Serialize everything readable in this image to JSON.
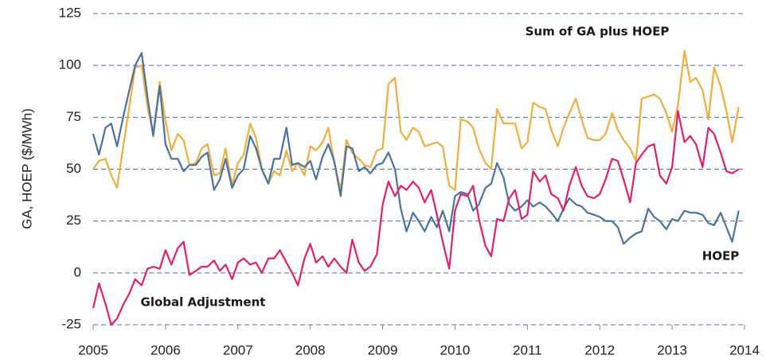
{
  "chart_data": {
    "type": "line",
    "y_label": "GA, HOEP ($/MWh)",
    "x": [
      2005,
      2005.08,
      2005.17,
      2005.25,
      2005.33,
      2005.42,
      2005.5,
      2005.58,
      2005.67,
      2005.75,
      2005.83,
      2005.92,
      2006,
      2006.08,
      2006.17,
      2006.25,
      2006.33,
      2006.42,
      2006.5,
      2006.58,
      2006.67,
      2006.75,
      2006.83,
      2006.92,
      2007,
      2007.08,
      2007.17,
      2007.25,
      2007.33,
      2007.42,
      2007.5,
      2007.58,
      2007.67,
      2007.75,
      2007.83,
      2007.92,
      2008,
      2008.08,
      2008.17,
      2008.25,
      2008.33,
      2008.42,
      2008.5,
      2008.58,
      2008.67,
      2008.75,
      2008.83,
      2008.92,
      2009,
      2009.08,
      2009.17,
      2009.25,
      2009.33,
      2009.42,
      2009.5,
      2009.58,
      2009.67,
      2009.75,
      2009.83,
      2009.92,
      2010,
      2010.08,
      2010.17,
      2010.25,
      2010.33,
      2010.42,
      2010.5,
      2010.58,
      2010.67,
      2010.75,
      2010.83,
      2010.92,
      2011,
      2011.08,
      2011.17,
      2011.25,
      2011.33,
      2011.42,
      2011.5,
      2011.58,
      2011.67,
      2011.75,
      2011.83,
      2011.92,
      2012,
      2012.08,
      2012.17,
      2012.25,
      2012.33,
      2012.42,
      2012.5,
      2012.58,
      2012.67,
      2012.75,
      2012.83,
      2012.92,
      2013,
      2013.08,
      2013.17,
      2013.25,
      2013.33,
      2013.42,
      2013.5,
      2013.58,
      2013.67,
      2013.75,
      2013.83,
      2013.92
    ],
    "series": [
      {
        "name": "Sum of GA plus HOEP",
        "color": "#f0ae3c",
        "values": [
          50,
          54,
          55,
          47,
          41,
          62,
          80,
          99,
          100,
          80,
          67,
          92,
          73,
          59,
          67,
          64,
          52,
          53,
          60,
          62,
          47,
          48,
          60,
          42,
          53,
          57,
          72,
          65,
          50,
          43,
          49,
          47,
          59,
          49,
          53,
          47,
          61,
          59,
          63,
          70,
          53,
          40,
          64,
          58,
          55,
          52,
          51,
          59,
          60,
          91,
          94,
          68,
          64,
          70,
          68,
          61,
          62,
          63,
          61,
          42,
          40,
          74,
          73,
          70,
          60,
          53,
          50,
          79,
          72,
          72,
          72,
          60,
          63,
          82,
          80,
          79,
          69,
          61,
          70,
          77,
          84,
          74,
          65,
          64,
          64,
          67,
          77,
          69,
          64,
          60,
          54,
          84,
          85,
          86,
          84,
          77,
          68,
          81,
          107,
          92,
          94,
          88,
          74,
          99,
          90,
          78,
          63,
          80
        ]
      },
      {
        "name": "HOEP",
        "color": "#4a72a0",
        "values": [
          67,
          57,
          70,
          72,
          61,
          76,
          88,
          100,
          106,
          85,
          66,
          90,
          62,
          55,
          55,
          49,
          52,
          52,
          56,
          58,
          40,
          45,
          55,
          41,
          47,
          50,
          66,
          60,
          50,
          43,
          55,
          55,
          70,
          52,
          53,
          51,
          54,
          45,
          56,
          62,
          54,
          37,
          61,
          60,
          49,
          51,
          48,
          52,
          53,
          58,
          50,
          31,
          20,
          29,
          25,
          20,
          27,
          22,
          30,
          20,
          37,
          39,
          38,
          30,
          33,
          41,
          43,
          53,
          46,
          33,
          30,
          32,
          35,
          32,
          34,
          32,
          29,
          25,
          31,
          36,
          33,
          32,
          29,
          28,
          27,
          25,
          25,
          22,
          14,
          17,
          19,
          20,
          31,
          27,
          25,
          21,
          26,
          25,
          30,
          29,
          29,
          28,
          24,
          23,
          29,
          22,
          15,
          30
        ]
      },
      {
        "name": "Global Adjustment",
        "color": "#e0206e",
        "values": [
          -17,
          -5,
          -15,
          -25,
          -22,
          -15,
          -10,
          -3,
          -6,
          2,
          3,
          2,
          11,
          4,
          12,
          15,
          -1,
          1,
          3,
          3,
          6,
          1,
          4,
          -3,
          5,
          7,
          4,
          5,
          0,
          7,
          7,
          11,
          5,
          0,
          -6,
          7,
          14,
          5,
          8,
          3,
          7,
          3,
          0,
          16,
          5,
          1,
          3,
          9,
          33,
          44,
          37,
          42,
          40,
          44,
          41,
          34,
          40,
          28,
          15,
          2,
          30,
          38,
          37,
          42,
          26,
          13,
          8,
          26,
          25,
          36,
          40,
          26,
          28,
          49,
          44,
          47,
          38,
          36,
          30,
          42,
          51,
          42,
          37,
          36,
          38,
          45,
          55,
          54,
          45,
          34,
          53,
          57,
          61,
          62,
          47,
          43,
          51,
          78,
          63,
          66,
          62,
          51,
          70,
          67,
          58,
          49,
          48,
          50
        ]
      }
    ],
    "xlim": [
      2005,
      2014
    ],
    "xticks": [
      2005,
      2006,
      2007,
      2008,
      2009,
      2010,
      2011,
      2012,
      2013,
      2014
    ],
    "ylim": [
      -25,
      125
    ],
    "yticks": [
      -25,
      0,
      25,
      50,
      75,
      100,
      125
    ],
    "grid": true
  }
}
